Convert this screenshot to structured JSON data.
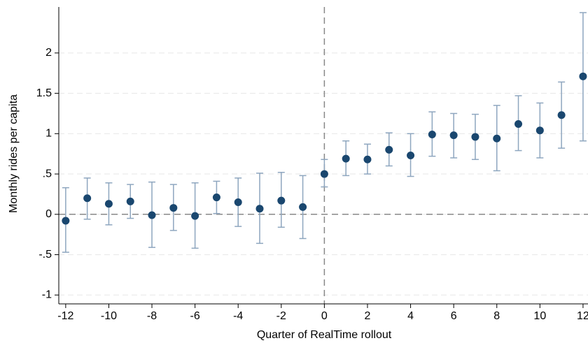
{
  "chart_data": {
    "type": "errorbar",
    "xlabel": "Quarter of RealTime rollout",
    "ylabel": "Monthly rides per capita",
    "x": [
      -12,
      -11,
      -10,
      -9,
      -8,
      -7,
      -6,
      -5,
      -4,
      -3,
      -2,
      -1,
      0,
      1,
      2,
      3,
      4,
      5,
      6,
      7,
      8,
      9,
      10,
      11,
      12
    ],
    "values": [
      -0.08,
      0.2,
      0.13,
      0.16,
      -0.01,
      0.08,
      -0.02,
      0.21,
      0.15,
      0.07,
      0.17,
      0.09,
      0.5,
      0.69,
      0.68,
      0.8,
      0.73,
      0.99,
      0.98,
      0.96,
      0.94,
      1.12,
      1.04,
      1.23,
      1.71
    ],
    "lower": [
      -0.47,
      -0.06,
      -0.13,
      -0.05,
      -0.41,
      -0.2,
      -0.42,
      0.01,
      -0.15,
      -0.36,
      -0.16,
      -0.3,
      0.34,
      0.48,
      0.5,
      0.6,
      0.47,
      0.72,
      0.7,
      0.68,
      0.54,
      0.79,
      0.7,
      0.82,
      0.91
    ],
    "upper": [
      0.33,
      0.45,
      0.39,
      0.37,
      0.4,
      0.37,
      0.39,
      0.41,
      0.45,
      0.51,
      0.52,
      0.48,
      0.68,
      0.91,
      0.87,
      1.01,
      1.0,
      1.27,
      1.25,
      1.24,
      1.35,
      1.47,
      1.38,
      1.64,
      2.5
    ],
    "color": "#1a476f",
    "errorbar_color": "#8ea6bf",
    "xlim": [
      -12.32,
      12.23
    ],
    "ylim": [
      -1.11,
      2.57
    ],
    "xticks": [
      -12,
      -10,
      -8,
      -6,
      -4,
      -2,
      0,
      2,
      4,
      6,
      8,
      10,
      12
    ],
    "yticks": [
      -1,
      {
        "value": -0.5,
        "label": "-.5"
      },
      0,
      {
        "value": 0.5,
        "label": ".5"
      },
      1,
      1.5,
      2
    ],
    "grid": true,
    "hline": 0,
    "vline": 0
  }
}
